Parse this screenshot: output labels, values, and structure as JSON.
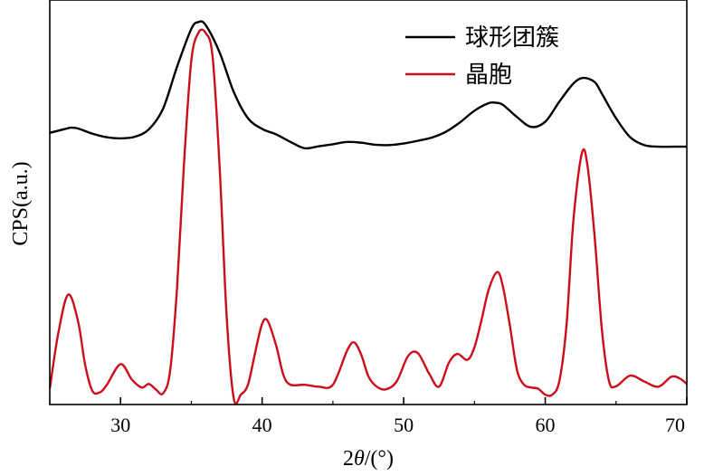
{
  "chart_data": {
    "type": "line",
    "title": "",
    "xlabel": "2θ/(°)",
    "xlabel_parts": {
      "prefix": "2",
      "symbol": "θ",
      "suffix": "/(°)"
    },
    "ylabel": "CPS(a.u.)",
    "xlim": [
      25,
      70
    ],
    "ylim": [
      0,
      1
    ],
    "x_ticks": [
      30,
      40,
      50,
      60,
      70
    ],
    "y_ticks": [],
    "grid": false,
    "legend_position": "top-right",
    "series": [
      {
        "name": "球形团簇",
        "color": "#000000",
        "x": [
          25,
          26,
          26.5,
          27,
          28,
          29,
          30,
          31,
          32,
          33,
          34,
          35,
          35.5,
          36,
          37,
          38,
          39,
          40,
          41,
          42,
          43,
          44,
          45,
          46,
          47,
          48,
          49,
          50,
          51,
          52,
          53,
          54,
          55,
          56,
          56.5,
          57,
          58,
          59,
          60,
          61,
          62,
          62.7,
          63.5,
          64,
          65,
          66,
          67,
          68,
          69,
          70
        ],
        "y": [
          0.687,
          0.696,
          0.7,
          0.698,
          0.685,
          0.676,
          0.673,
          0.677,
          0.696,
          0.748,
          0.855,
          0.95,
          0.967,
          0.96,
          0.89,
          0.79,
          0.724,
          0.697,
          0.683,
          0.664,
          0.648,
          0.653,
          0.658,
          0.664,
          0.662,
          0.657,
          0.656,
          0.66,
          0.667,
          0.675,
          0.69,
          0.714,
          0.743,
          0.762,
          0.763,
          0.758,
          0.727,
          0.702,
          0.715,
          0.766,
          0.812,
          0.826,
          0.815,
          0.786,
          0.724,
          0.676,
          0.656,
          0.652,
          0.652,
          0.652
        ]
      },
      {
        "name": "晶胞",
        "color": "#cc0e1c",
        "x": [
          25,
          25.6,
          26.3,
          27,
          27.5,
          28,
          28.5,
          29,
          30,
          30.8,
          31.5,
          32,
          32.5,
          33,
          33.5,
          34,
          34.5,
          35,
          35.5,
          36,
          36.5,
          37,
          37.5,
          38,
          38.5,
          39,
          39.5,
          40,
          40.4,
          41,
          41.5,
          42,
          43,
          44,
          45,
          46,
          46.5,
          47,
          47.5,
          48,
          48.7,
          49.5,
          50.3,
          51,
          51.8,
          52.5,
          53.2,
          53.8,
          54.5,
          55,
          55.5,
          56,
          56.6,
          57,
          57.5,
          58,
          58.5,
          59,
          59.5,
          60,
          60.5,
          61,
          61.5,
          62,
          62.6,
          63,
          63.5,
          64,
          64.5,
          65,
          66,
          67,
          68,
          68.9,
          69.5,
          70
        ],
        "y": [
          0.04,
          0.18,
          0.278,
          0.21,
          0.1,
          0.035,
          0.03,
          0.048,
          0.102,
          0.063,
          0.043,
          0.052,
          0.038,
          0.028,
          0.085,
          0.3,
          0.62,
          0.87,
          0.94,
          0.94,
          0.88,
          0.6,
          0.22,
          0.015,
          0.025,
          0.05,
          0.13,
          0.204,
          0.211,
          0.148,
          0.075,
          0.05,
          0.05,
          0.045,
          0.05,
          0.136,
          0.157,
          0.126,
          0.072,
          0.048,
          0.038,
          0.058,
          0.122,
          0.13,
          0.078,
          0.045,
          0.106,
          0.128,
          0.113,
          0.145,
          0.214,
          0.29,
          0.335,
          0.3,
          0.2,
          0.088,
          0.05,
          0.043,
          0.04,
          0.025,
          0.025,
          0.06,
          0.2,
          0.47,
          0.637,
          0.6,
          0.42,
          0.19,
          0.06,
          0.046,
          0.073,
          0.058,
          0.045,
          0.07,
          0.066,
          0.052
        ]
      }
    ]
  }
}
